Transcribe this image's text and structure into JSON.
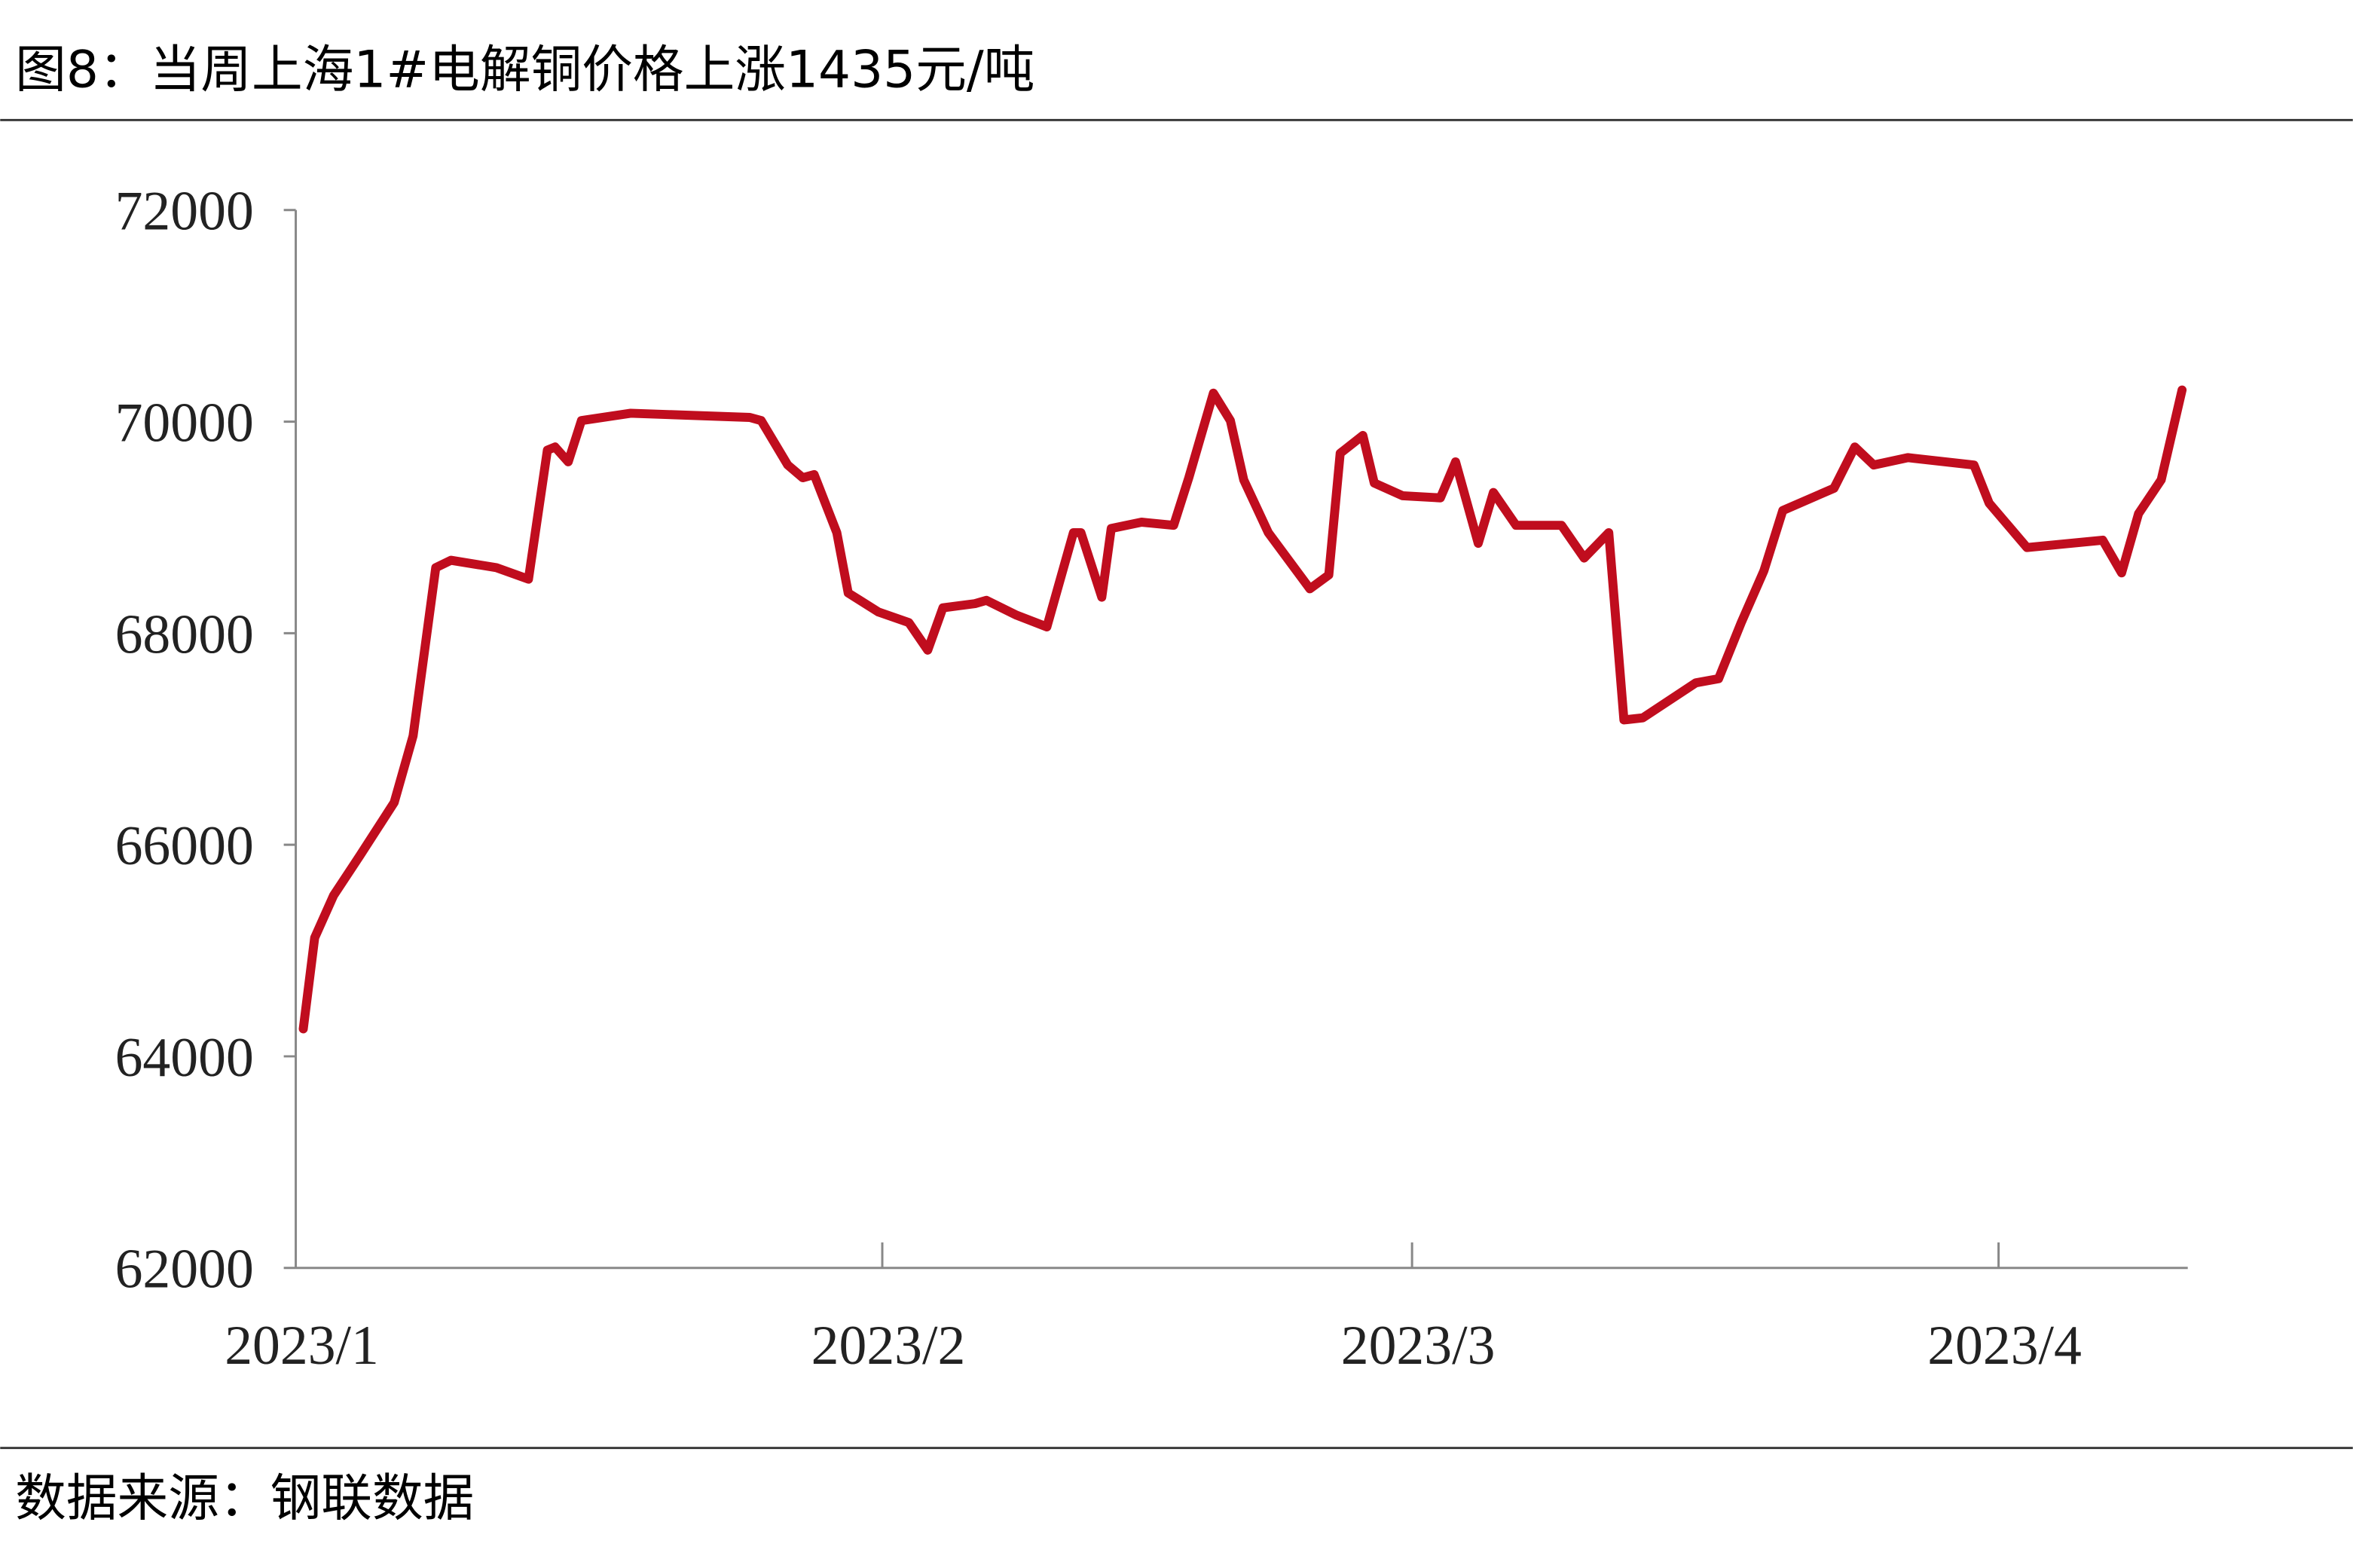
{
  "title": "图8：当周上海1#电解铜价格上涨1435元/吨",
  "source": "数据来源：钢联数据",
  "chart_data": {
    "type": "line",
    "x": [
      0.4,
      1,
      2,
      3.4,
      5.2,
      6.2,
      7.4,
      8.2,
      10.6,
      12.3,
      13.3,
      13.7,
      14.4,
      15.1,
      17.7,
      24,
      24.6,
      26,
      26.8,
      27.4,
      28.6,
      29.2,
      30.8,
      32.4,
      33.4,
      34.2,
      35.9,
      36.5,
      38.1,
      39.7,
      41.1,
      41.5,
      42.6,
      43.1,
      44.7,
      46.4,
      47.2,
      48.5,
      49.4,
      50.1,
      51.4,
      53.6,
      54.6,
      55.2,
      56.4,
      57,
      58.5,
      60.5,
      61.3,
      62.5,
      63.3,
      64.5,
      66.9,
      68.1,
      69.4,
      70.2,
      71.2,
      74,
      75.2,
      76.4,
      77.6,
      78.6,
      81.3,
      82.4,
      83.4,
      85.2,
      88.7,
      89.5,
      91.5,
      95.5,
      96.5,
      97.4,
      98.6,
      99.7
    ],
    "series": [
      {
        "color": "#c00d1e",
        "values": [
          64260,
          65120,
          65520,
          65900,
          66400,
          67030,
          68620,
          68690,
          68620,
          68510,
          69730,
          69760,
          69620,
          70010,
          70080,
          70040,
          70010,
          69590,
          69470,
          69500,
          68950,
          68380,
          68200,
          68100,
          67840,
          68240,
          68280,
          68310,
          68170,
          68060,
          68950,
          68950,
          68340,
          68990,
          69050,
          69020,
          69470,
          70270,
          70010,
          69450,
          68950,
          68420,
          68550,
          69700,
          69870,
          69420,
          69300,
          69280,
          69620,
          68850,
          69330,
          69020,
          69020,
          68710,
          68950,
          67180,
          67200,
          67530,
          67570,
          68100,
          68590,
          69160,
          69370,
          69760,
          69590,
          69660,
          69590,
          69230,
          68810,
          68880,
          68570,
          69130,
          69450,
          70300
        ]
      }
    ],
    "xlim": [
      0,
      100
    ],
    "xticks": [
      {
        "value": 0,
        "label": "2023/1"
      },
      {
        "value": 31,
        "label": "2023/2"
      },
      {
        "value": 59,
        "label": "2023/3"
      },
      {
        "value": 90,
        "label": "2023/4"
      }
    ],
    "ylim": [
      62000,
      72000
    ],
    "yticks": [
      62000,
      64000,
      66000,
      68000,
      70000,
      72000
    ]
  }
}
